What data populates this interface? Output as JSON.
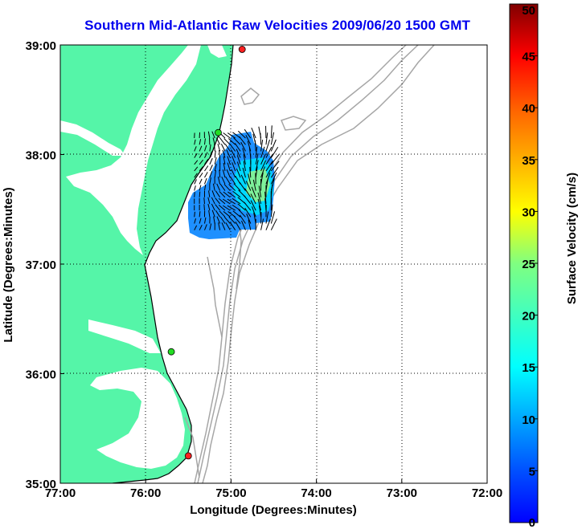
{
  "title": "Southern Mid-Atlantic Raw Velocities 2009/06/20 1500 GMT",
  "xlabel": "Longitude (Degrees:Minutes)",
  "ylabel": "Latitude (Degrees:Minutes)",
  "x_ticks": [
    "77:00",
    "76:00",
    "75:00",
    "74:00",
    "73:00",
    "72:00"
  ],
  "y_ticks": [
    "39:00",
    "38:00",
    "37:00",
    "36:00",
    "35:00"
  ],
  "colorbar": {
    "label": "Surface Velocity (cm/s)",
    "ticks": [
      "0",
      "5",
      "10",
      "15",
      "20",
      "25",
      "30",
      "35",
      "40",
      "45",
      "50"
    ],
    "range": [
      0,
      50
    ],
    "colormap": "jet"
  },
  "colors": {
    "land": "#55f5a8",
    "grid": "#000000",
    "bathymetry": "#a6a6a6",
    "title": "#0000ee"
  },
  "chart_data": {
    "type": "map",
    "xlim_deg_west": [
      77,
      72
    ],
    "ylim_deg_north": [
      35,
      39
    ],
    "grid": "dotted",
    "stations": [
      {
        "lon": -74.87,
        "lat": 38.96,
        "color": "red"
      },
      {
        "lon": -75.15,
        "lat": 38.2,
        "color": "green"
      },
      {
        "lon": -75.7,
        "lat": 36.2,
        "color": "green"
      },
      {
        "lon": -75.5,
        "lat": 35.25,
        "color": "red"
      }
    ],
    "velocity_field": {
      "lon_range": [
        -75.55,
        -74.35
      ],
      "lat_range": [
        37.25,
        38.2
      ],
      "speed_range_cm_s": [
        2,
        22
      ]
    }
  }
}
